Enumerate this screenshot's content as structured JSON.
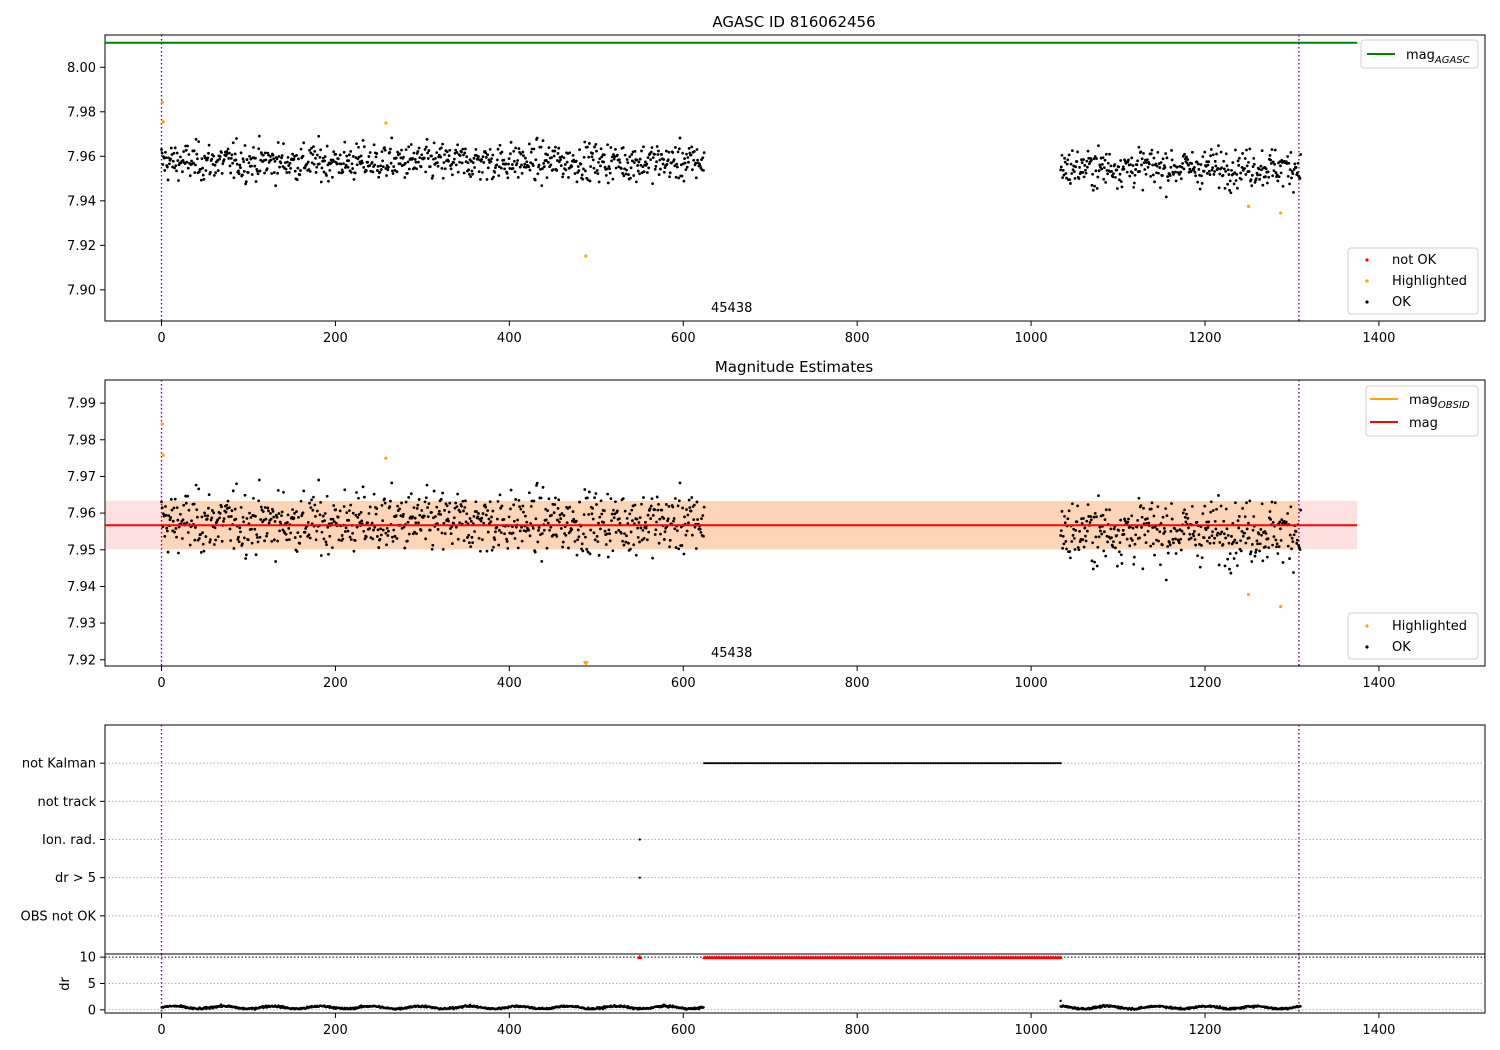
{
  "chart_data": [
    {
      "id": "top",
      "type": "scatter",
      "title": "AGASC ID 816062456",
      "xlim": [
        -65,
        1522
      ],
      "ylim": [
        7.886,
        8.0145
      ],
      "xticks": [
        0,
        200,
        400,
        600,
        800,
        1000,
        1200,
        1400
      ],
      "xtick_labels": [
        "0",
        "200",
        "400",
        "600",
        "800",
        "1000",
        "1200",
        "1400"
      ],
      "yticks": [
        7.9,
        7.92,
        7.94,
        7.96,
        7.98,
        8.0
      ],
      "ytick_labels": [
        "7.90",
        "7.92",
        "7.94",
        "7.96",
        "7.98",
        "8.00"
      ],
      "mag_agasc": 8.011,
      "mag_agasc_x": [
        -65,
        1375
      ],
      "obsid_boundaries": [
        0,
        1308
      ],
      "obsid_label": "45438",
      "obsid_label_x": 633,
      "segments": [
        {
          "x0": 0,
          "x1": 624,
          "center": 7.9575,
          "spread": 0.0065
        },
        {
          "x0": 1034,
          "x1": 1310,
          "center": 7.955,
          "spread": 0.0065
        }
      ],
      "highlighted": [
        {
          "x": 1,
          "y": 7.9843
        },
        {
          "x": 2,
          "y": 7.9755
        },
        {
          "x": 258,
          "y": 7.975
        },
        {
          "x": 488,
          "y": 7.9152
        },
        {
          "x": 1250,
          "y": 7.9375
        },
        {
          "x": 1287,
          "y": 7.9345
        }
      ],
      "legend_top": [
        {
          "label": "mag",
          "sub": "AGASC",
          "color": "#008000"
        }
      ],
      "legend_bottom": [
        {
          "label": "not OK",
          "color": "#ff0000"
        },
        {
          "label": "Highlighted",
          "color": "#ffa500"
        },
        {
          "label": "OK",
          "color": "#000000"
        }
      ]
    },
    {
      "id": "mid",
      "type": "scatter",
      "title": "Magnitude Estimates",
      "xlim": [
        -65,
        1522
      ],
      "ylim": [
        7.9183,
        7.9963
      ],
      "xticks": [
        0,
        200,
        400,
        600,
        800,
        1000,
        1200,
        1400
      ],
      "xtick_labels": [
        "0",
        "200",
        "400",
        "600",
        "800",
        "1000",
        "1200",
        "1400"
      ],
      "yticks": [
        7.92,
        7.93,
        7.94,
        7.95,
        7.96,
        7.97,
        7.98,
        7.99
      ],
      "ytick_labels": [
        "7.92",
        "7.93",
        "7.94",
        "7.95",
        "7.96",
        "7.97",
        "7.98",
        "7.99"
      ],
      "mag": 7.9567,
      "mag_band": [
        7.9501,
        7.9633
      ],
      "mag_x": [
        -65,
        1375
      ],
      "obsid_band": [
        0,
        1308
      ],
      "obsid_boundaries": [
        0,
        1308
      ],
      "obsid_label": "45438",
      "obsid_label_x": 633,
      "highlighted": [
        {
          "x": 1,
          "y": 7.9843
        },
        {
          "x": 2,
          "y": 7.9758
        },
        {
          "x": 258,
          "y": 7.975
        },
        {
          "x": 1250,
          "y": 7.9378
        },
        {
          "x": 1287,
          "y": 7.9345
        }
      ],
      "offscale_markers": [
        {
          "x": 488,
          "y": 7.9188
        }
      ],
      "legend_top": [
        {
          "label": "mag",
          "sub": "OBSID",
          "color": "#ffa500"
        },
        {
          "label": "mag",
          "sub": "",
          "color": "#ff0000"
        }
      ],
      "legend_bottom": [
        {
          "label": "Highlighted",
          "color": "#ffa500"
        },
        {
          "label": "OK",
          "color": "#000000"
        }
      ]
    },
    {
      "id": "flags",
      "type": "scatter",
      "xlim": [
        -65,
        1522
      ],
      "categories": [
        "OBS not OK",
        "dr > 5",
        "Ion. rad.",
        "not track",
        "not Kalman"
      ],
      "category_y": [
        0,
        1,
        2,
        3,
        4
      ],
      "ylim": [
        -1,
        5
      ],
      "obsid_boundaries": [
        0,
        1308
      ],
      "points": [
        {
          "category": "not Kalman",
          "x0": 624,
          "x1": 1034,
          "step": 2
        },
        {
          "category": "Ion. rad.",
          "x0": 550,
          "x1": 550,
          "step": 1
        },
        {
          "category": "dr > 5",
          "x0": 550,
          "x1": 550,
          "step": 1
        }
      ]
    },
    {
      "id": "dr",
      "type": "scatter",
      "ylabel": "dr",
      "xlim": [
        -65,
        1522
      ],
      "ylim": [
        -0.6,
        10.6
      ],
      "yticks": [
        0,
        5,
        10
      ],
      "ytick_labels": [
        "0",
        "5",
        "10"
      ],
      "xticks": [
        0,
        200,
        400,
        600,
        800,
        1000,
        1200,
        1400
      ],
      "xtick_labels": [
        "0",
        "200",
        "400",
        "600",
        "800",
        "1000",
        "1200",
        "1400"
      ],
      "threshold": 10,
      "obsid_boundaries": [
        0,
        1308
      ],
      "segments": [
        {
          "x0": 0,
          "x1": 624,
          "base": 0.45
        },
        {
          "x0": 1034,
          "x1": 1310,
          "base": 0.45
        }
      ],
      "red_markers": [
        {
          "x": 550,
          "y": 10
        }
      ],
      "red_run": {
        "x0": 624,
        "x1": 1034,
        "step": 2,
        "y": 10
      },
      "spike": {
        "x": 1034,
        "y": 1.7
      }
    }
  ]
}
